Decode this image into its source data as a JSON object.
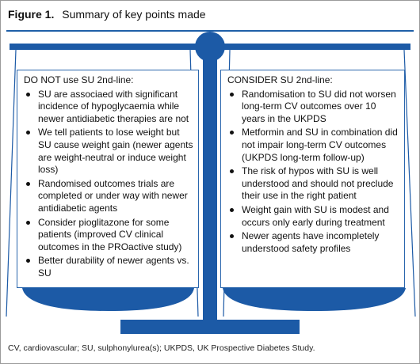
{
  "figure": {
    "number": "Figure 1.",
    "title": "Summary of key points made",
    "footnote": "CV, cardiovascular; SU, sulphonylurea(s); UKPDS, UK Prospective Diabetes Study."
  },
  "colors": {
    "accent": "#1f5fa8",
    "scale": "#1c5aa6",
    "panel_border": "#2a66ad",
    "text": "#111111"
  },
  "left_panel": {
    "title": "DO NOT use SU 2nd-line:",
    "items": [
      "SU are associaed with significant incidence of hypoglycaemia while newer antidiabetic therapies are not",
      "We tell patients to lose weight but SU cause weight gain (newer agents are weight-neutral or induce weight loss)",
      "Randomised outcomes trials are completed or under way with newer antidiabetic agents",
      "Consider pioglitazone for some patients (improved CV clinical outcomes in the PROactive study)",
      "Better durability of newer agents vs. SU"
    ]
  },
  "right_panel": {
    "title": "CONSIDER SU 2nd-line:",
    "items": [
      "Randomisation to SU did not worsen long-term CV outcomes over 10 years in the UKPDS",
      "Metformin and SU in combination did not impair long-term CV outcomes (UKPDS long-term follow-up)",
      "The risk of hypos with SU is well understood and should not preclude their use in the right patient",
      "Weight gain with SU is modest and occurs only early during treatment",
      "Newer agents have incompletely understood safety profiles"
    ]
  }
}
